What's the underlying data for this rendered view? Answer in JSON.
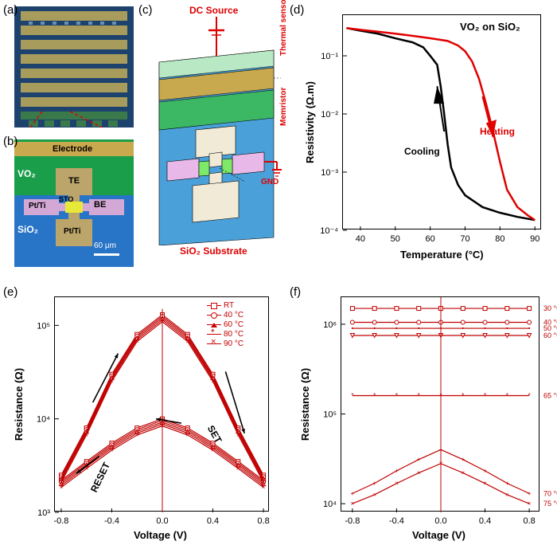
{
  "panel_a": {
    "label": "(a)",
    "description": "device-array-micrograph"
  },
  "panel_b": {
    "label": "(b)",
    "labels": {
      "electrode": "Electrode",
      "vo2": "VO₂",
      "te": "TE",
      "sto": "STO",
      "be": "BE",
      "ptti_l": "Pt/Ti",
      "ptti_b": "Pt/Ti",
      "sio2": "SiO₂",
      "scalebar": "60 μm"
    },
    "colors": {
      "vo2_region": "#1a9e4a",
      "sio2_region": "#2874c7",
      "electrode": "#c9a94e",
      "ptti": "#d4a8d4",
      "sto": "#e8e838"
    }
  },
  "panel_c": {
    "label": "(c)",
    "labels": {
      "dc_source": "DC Source",
      "thermal_sensor": "Thermal sensor",
      "memristor": "Memristor",
      "gnd": "GND",
      "substrate": "SiO₂ Substrate"
    },
    "colors": {
      "substrate": "#4aa0d8",
      "green_layer": "#3cb864",
      "tan_layer": "#c9a94e",
      "pink_pads": "#e8b8e8",
      "green_contact": "#7ee868",
      "white_pad": "#f0ead6"
    }
  },
  "panel_d": {
    "label": "(d)",
    "title": "VO₂ on SiO₂",
    "xlabel": "Temperature (°C)",
    "ylabel": "Resistivity (Ω.m)",
    "xlim": [
      35,
      92
    ],
    "xticks": [
      40,
      50,
      60,
      70,
      80,
      90
    ],
    "ylim_log": [
      0.0001,
      0.5
    ],
    "ytick_labels": [
      "10⁻⁴",
      "10⁻³",
      "10⁻²",
      "10⁻¹"
    ],
    "heating": {
      "color": "#e00000",
      "label": "Heating",
      "x": [
        36,
        40,
        45,
        50,
        55,
        60,
        65,
        68,
        70,
        72,
        74,
        76,
        78,
        80,
        82,
        85,
        88,
        90
      ],
      "y": [
        0.3,
        0.28,
        0.26,
        0.24,
        0.22,
        0.2,
        0.18,
        0.15,
        0.12,
        0.08,
        0.04,
        0.015,
        0.005,
        0.0015,
        0.0005,
        0.00025,
        0.00018,
        0.00015
      ]
    },
    "cooling": {
      "color": "#000000",
      "label": "Cooling",
      "x": [
        36,
        40,
        45,
        50,
        55,
        58,
        60,
        62,
        63,
        64,
        65,
        66,
        68,
        70,
        75,
        80,
        85,
        90
      ],
      "y": [
        0.3,
        0.27,
        0.24,
        0.2,
        0.17,
        0.14,
        0.1,
        0.07,
        0.03,
        0.01,
        0.003,
        0.0012,
        0.0006,
        0.0004,
        0.00025,
        0.0002,
        0.00017,
        0.00015
      ]
    },
    "line_width": 2.5,
    "background_color": "#ffffff"
  },
  "panel_e": {
    "label": "(e)",
    "xlabel": "Voltage (V)",
    "ylabel": "Resistance (Ω)",
    "xlim": [
      -0.85,
      0.85
    ],
    "xticks": [
      -0.8,
      -0.4,
      0.0,
      0.4,
      0.8
    ],
    "ylim_log": [
      1000.0,
      200000.0
    ],
    "ytick_labels": [
      "10³",
      "10⁴",
      "10⁵"
    ],
    "annotations": {
      "set": "SET",
      "reset": "RESET"
    },
    "series": [
      {
        "label": "RT",
        "marker": "square",
        "color": "#c00000"
      },
      {
        "label": "40 °C",
        "marker": "circle",
        "color": "#c00000"
      },
      {
        "label": "60 °C",
        "marker": "triangle-up",
        "color": "#c00000"
      },
      {
        "label": "80 °C",
        "marker": "star",
        "color": "#c00000"
      },
      {
        "label": "90 °C",
        "marker": "x",
        "color": "#c00000"
      }
    ],
    "upper_branch": {
      "x": [
        -0.8,
        -0.6,
        -0.4,
        -0.2,
        0,
        0.2,
        0.4,
        0.6,
        0.8
      ],
      "y": [
        2500,
        8000,
        30000,
        80000,
        130000,
        80000,
        30000,
        8000,
        2500
      ]
    },
    "lower_branch": {
      "x": [
        -0.8,
        -0.6,
        -0.4,
        -0.2,
        0,
        0.2,
        0.4,
        0.6,
        0.8
      ],
      "y": [
        2200,
        3500,
        5500,
        8000,
        10000,
        8000,
        5500,
        3500,
        2200
      ]
    },
    "line_width": 1.2
  },
  "panel_f": {
    "label": "(f)",
    "xlabel": "Voltage (V)",
    "ylabel": "Resistance (Ω)",
    "xlim": [
      -0.9,
      0.9
    ],
    "xticks": [
      -0.8,
      -0.4,
      0.0,
      0.4,
      0.8
    ],
    "ylim_log": [
      8000.0,
      2000000.0
    ],
    "ytick_labels": [
      "10⁴",
      "10⁵",
      "10⁶"
    ],
    "series": [
      {
        "label": "30 °C",
        "y_flat": 1500000.0,
        "marker": "square"
      },
      {
        "label": "40 °C",
        "y_flat": 1050000.0,
        "marker": "circle"
      },
      {
        "label": "50 °C",
        "y_flat": 900000.0,
        "marker": "dot"
      },
      {
        "label": "60 °C",
        "y_flat": 750000.0,
        "marker": "triangle-down"
      },
      {
        "label": "65 °C",
        "y_flat": 160000.0,
        "marker": "star"
      },
      {
        "label": "70 °C",
        "peak": 40000.0,
        "min": 13000.0,
        "marker": "plus"
      },
      {
        "label": "75 °C",
        "peak": 28000.0,
        "min": 10000.0,
        "marker": "x"
      }
    ],
    "color": "#c00000",
    "line_width": 1.2
  }
}
